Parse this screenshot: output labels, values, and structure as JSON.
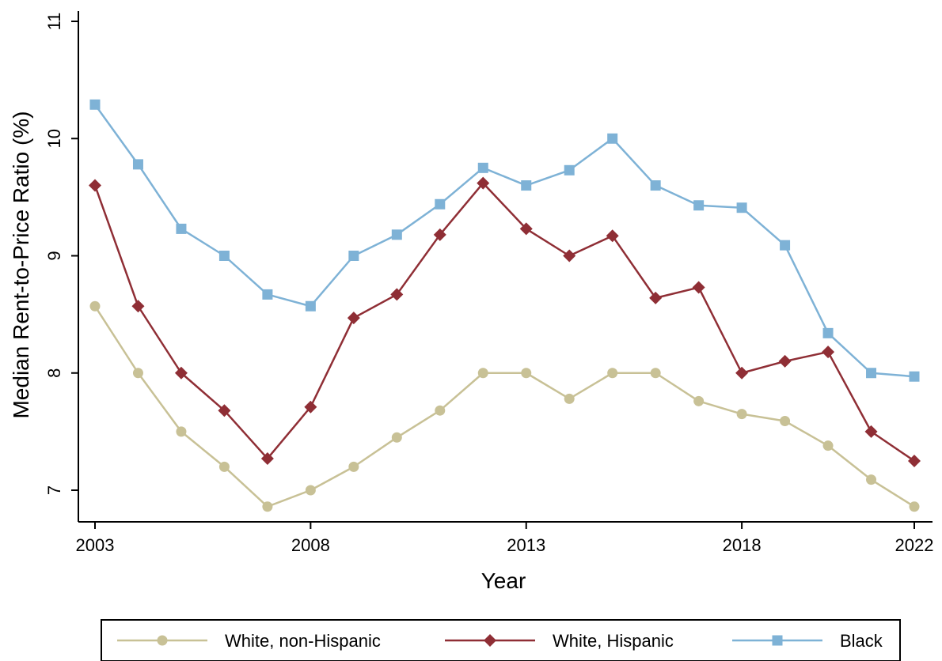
{
  "chart_data": {
    "type": "line",
    "title": "",
    "xlabel": "Year",
    "ylabel": "Median Rent-to-Price Ratio (%)",
    "xlim": [
      2003,
      2022
    ],
    "ylim": [
      7,
      11
    ],
    "xticks": [
      "2003",
      "2008",
      "2013",
      "2018",
      "2022"
    ],
    "yticks": [
      "7",
      "8",
      "9",
      "10",
      "11"
    ],
    "grid": false,
    "legend_position": "bottom",
    "x": [
      2003,
      2004,
      2005,
      2006,
      2007,
      2008,
      2009,
      2010,
      2011,
      2012,
      2013,
      2014,
      2015,
      2016,
      2017,
      2018,
      2019,
      2020,
      2021,
      2022
    ],
    "series": [
      {
        "name": "White, non-Hispanic",
        "color": "#c8c196",
        "marker": "circle",
        "values": [
          8.57,
          8.0,
          7.5,
          7.2,
          6.86,
          7.0,
          7.2,
          7.45,
          7.68,
          8.0,
          8.0,
          7.78,
          8.0,
          8.0,
          7.76,
          7.65,
          7.59,
          7.38,
          7.09,
          6.86
        ]
      },
      {
        "name": "White, Hispanic",
        "color": "#8f2e35",
        "marker": "diamond",
        "values": [
          9.6,
          8.57,
          8.0,
          7.68,
          7.27,
          7.71,
          8.47,
          8.67,
          9.18,
          9.62,
          9.23,
          9.0,
          9.17,
          8.64,
          8.73,
          8.0,
          8.1,
          8.18,
          7.5,
          7.25
        ]
      },
      {
        "name": "Black",
        "color": "#7eb2d6",
        "marker": "square",
        "values": [
          10.29,
          9.78,
          9.23,
          9.0,
          8.67,
          8.57,
          9.0,
          9.18,
          9.44,
          9.75,
          9.6,
          9.73,
          10.0,
          9.6,
          9.43,
          9.41,
          9.09,
          8.34,
          8.0,
          7.97
        ]
      }
    ]
  }
}
